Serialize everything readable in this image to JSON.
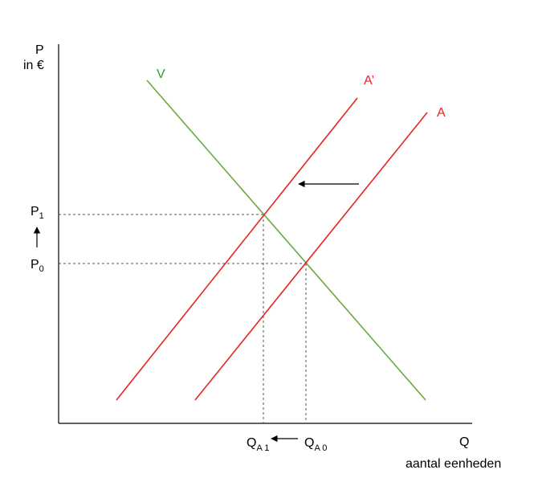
{
  "axes": {
    "y_label_1": "P",
    "y_label_2": "in €",
    "x_label_1": "Q",
    "x_label_2": "aantal eenheden"
  },
  "curves": {
    "demand": "V",
    "supply_new": "A’",
    "supply_old": "A"
  },
  "price_labels": {
    "p1_base": "P",
    "p1_sub": "1",
    "p0_base": "P",
    "p0_sub": "0"
  },
  "quantity_labels": {
    "q1_base": "Q",
    "q1_sub": "A 1",
    "q0_base": "Q",
    "q0_sub": "A 0"
  },
  "colors": {
    "supply": "#e8231f",
    "demand": "#6aaa3c",
    "axis": "#000000",
    "guide": "#555555"
  }
}
